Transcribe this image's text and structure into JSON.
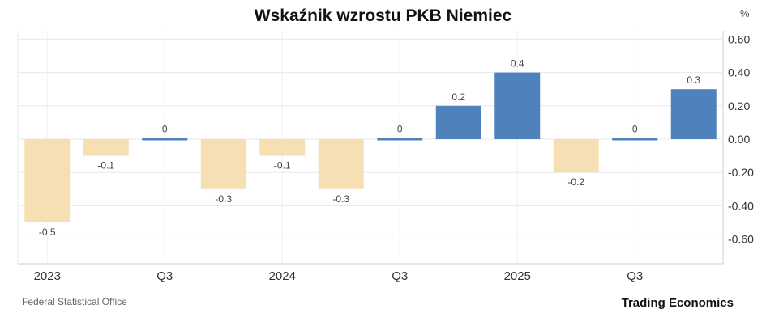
{
  "chart_data": {
    "type": "bar",
    "title": "Wskaźnik wzrostu PKB Niemiec",
    "unit": "%",
    "categories": [
      "2023",
      "",
      "Q3",
      "",
      "2024",
      "",
      "Q3",
      "",
      "2025",
      "",
      "Q3",
      ""
    ],
    "values": [
      -0.5,
      -0.1,
      0.0,
      -0.3,
      -0.1,
      -0.3,
      0.0,
      0.2,
      0.4,
      -0.2,
      0.0,
      0.3
    ],
    "data_labels": [
      "-0.5",
      "-0.1",
      "0",
      "-0.3",
      "-0.1",
      "-0.3",
      "0",
      "0.2",
      "0.4",
      "-0.2",
      "0",
      "0.3"
    ],
    "ylim": [
      -0.75,
      0.65
    ],
    "yticks": [
      0.6,
      0.4,
      0.2,
      0.0,
      -0.2,
      -0.4,
      -0.6
    ],
    "ytick_labels": [
      "0.60",
      "0.40",
      "0.20",
      "0.00",
      "-0.20",
      "-0.40",
      "-0.60"
    ],
    "positive_color": "#4f81bd",
    "negative_color": "#f7dfb4",
    "grid": true,
    "yaxis_position": "right"
  },
  "footer": {
    "source": "Federal Statistical Office",
    "brand": "Trading Economics"
  }
}
